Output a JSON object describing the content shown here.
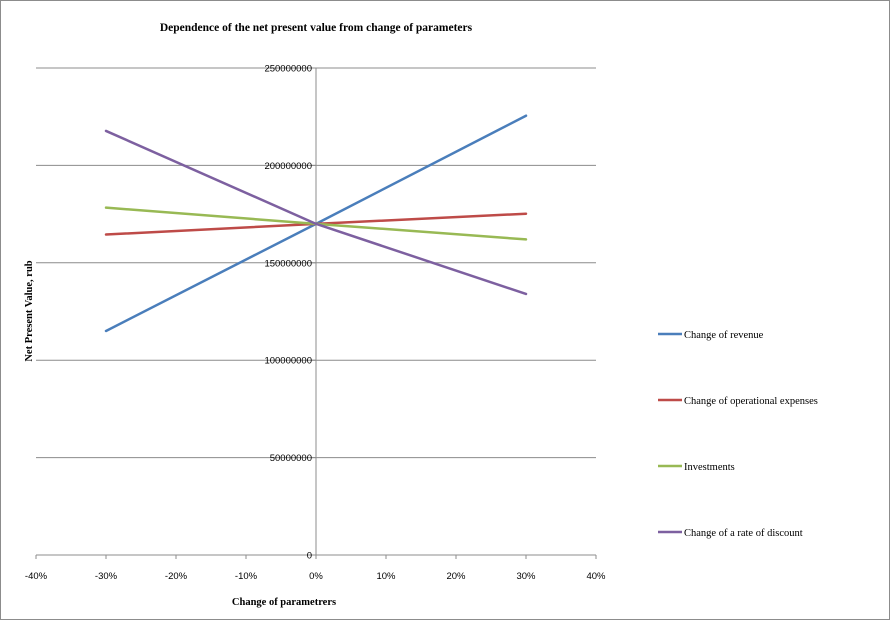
{
  "chart_data": {
    "type": "line",
    "title": "Dependence of the net present value from change of parameters",
    "xlabel": "Change of parametrers",
    "ylabel": "Net Present Value, rub",
    "x": [
      -0.3,
      0,
      0.3
    ],
    "xlim": [
      -0.4,
      0.4
    ],
    "x_ticks": [
      "-40%",
      "-30%",
      "-20%",
      "-10%",
      "0%",
      "10%",
      "20%",
      "30%",
      "40%"
    ],
    "ylim": [
      0,
      250000000
    ],
    "y_ticks": [
      "0",
      "50000000",
      "100000000",
      "150000000",
      "200000000",
      "250000000"
    ],
    "grid": true,
    "legend_position": "right",
    "series": [
      {
        "name": "Change of revenue",
        "color": "#4a7ebb",
        "values": [
          115000000,
          170000000,
          225500000
        ]
      },
      {
        "name": "Change of operational expenses",
        "color": "#be4b48",
        "values": [
          164500000,
          170000000,
          175200000
        ]
      },
      {
        "name": "Investments",
        "color": "#98b954",
        "values": [
          178300000,
          170000000,
          162000000
        ]
      },
      {
        "name": "Change of a rate of discount",
        "color": "#7d60a0",
        "values": [
          217700000,
          170000000,
          134000000
        ]
      }
    ]
  }
}
